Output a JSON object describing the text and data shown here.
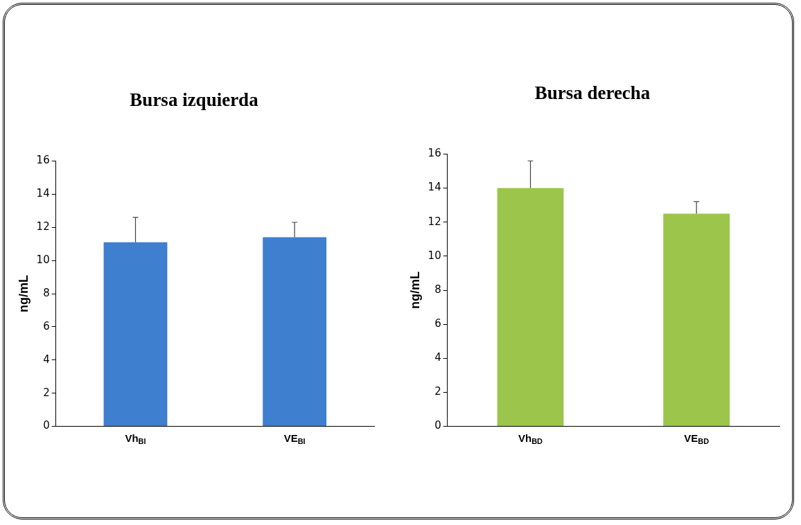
{
  "chart_data": [
    {
      "type": "bar",
      "title": "Bursa izquierda",
      "ylabel": "ng/mL",
      "categories": [
        "Vh$_{BI}$",
        "VE$_{BI}$"
      ],
      "values": [
        11.1,
        11.4
      ],
      "color": "#3f7fcf",
      "errors": [
        [
          11.1,
          12.6
        ],
        [
          11.4,
          12.3
        ]
      ],
      "ylim": [
        0,
        16
      ],
      "yticks": [
        0,
        2,
        4,
        6,
        8,
        10,
        12,
        14,
        16
      ]
    },
    {
      "type": "bar",
      "title": "Bursa derecha",
      "ylabel": "ng/mL",
      "categories": [
        "Vh$_{BD}$",
        "VE$_{BD}$"
      ],
      "values": [
        14.0,
        12.5
      ],
      "color": "#9bc64b",
      "errors": [
        [
          14.0,
          15.6
        ],
        [
          12.5,
          13.2
        ]
      ],
      "ylim": [
        0,
        16
      ],
      "yticks": [
        0,
        2,
        4,
        6,
        8,
        10,
        12,
        14,
        16
      ]
    }
  ]
}
